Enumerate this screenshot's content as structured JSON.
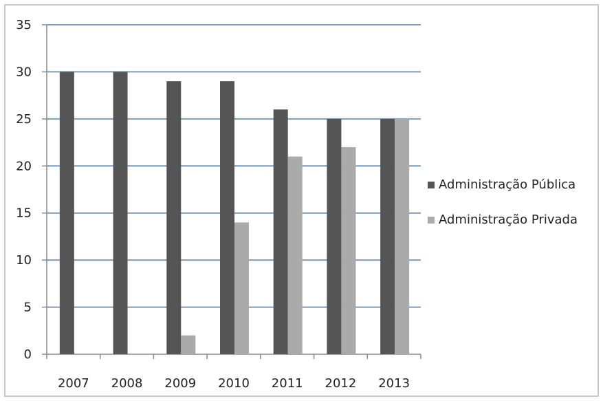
{
  "chart_data": {
    "type": "bar",
    "title": "",
    "xlabel": "",
    "ylabel": "",
    "categories": [
      "2007",
      "2008",
      "2009",
      "2010",
      "2011",
      "2012",
      "2013"
    ],
    "series": [
      {
        "name": "Administração Pública",
        "color": "#555555",
        "values": [
          30,
          30,
          29,
          29,
          26,
          25,
          25
        ]
      },
      {
        "name": "Administração Privada",
        "color": "#aaaaaa",
        "values": [
          0,
          0,
          2,
          14,
          21,
          22,
          25
        ]
      }
    ],
    "ylim": [
      0,
      35
    ],
    "yticks": [
      "0",
      "5",
      "10",
      "15",
      "20",
      "25",
      "30",
      "35"
    ],
    "grid": true,
    "legend_position": "right"
  }
}
